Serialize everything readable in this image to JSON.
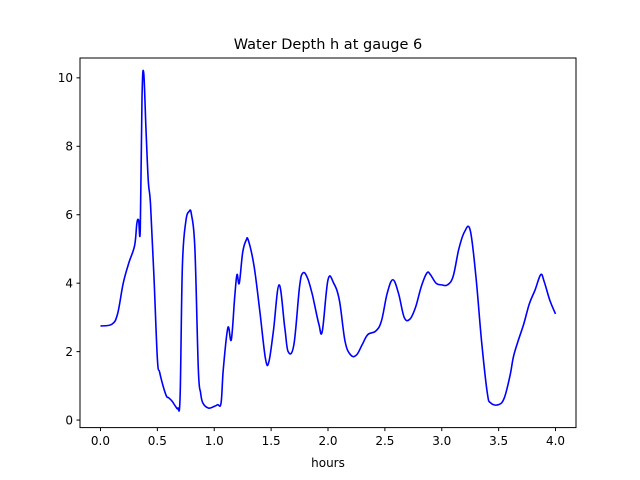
{
  "chart_data": {
    "type": "line",
    "title": "Water Depth h at gauge 6",
    "xlabel": "hours",
    "ylabel": "",
    "xlim": [
      -0.18,
      4.18
    ],
    "ylim": [
      -0.22,
      10.58
    ],
    "xticks": [
      0.0,
      0.5,
      1.0,
      1.5,
      2.0,
      2.5,
      3.0,
      3.5,
      4.0
    ],
    "xtick_labels": [
      "0.0",
      "0.5",
      "1.0",
      "1.5",
      "2.0",
      "2.5",
      "3.0",
      "3.5",
      "4.0"
    ],
    "yticks": [
      0,
      2,
      4,
      6,
      8,
      10
    ],
    "ytick_labels": [
      "0",
      "2",
      "4",
      "6",
      "8",
      "10"
    ],
    "grid": false,
    "colors": {
      "line": "#0000ff",
      "axes": "#000000",
      "background": "#ffffff"
    },
    "series": [
      {
        "x": [
          0.0,
          0.1,
          0.15,
          0.2,
          0.25,
          0.3,
          0.32,
          0.335,
          0.35,
          0.365,
          0.38,
          0.4,
          0.42,
          0.44,
          0.47,
          0.5,
          0.52,
          0.55,
          0.58,
          0.6,
          0.63,
          0.66,
          0.68,
          0.7,
          0.72,
          0.75,
          0.78,
          0.8,
          0.83,
          0.86,
          0.88,
          0.9,
          0.95,
          1.0,
          1.03,
          1.06,
          1.08,
          1.12,
          1.15,
          1.18,
          1.2,
          1.22,
          1.25,
          1.28,
          1.3,
          1.35,
          1.4,
          1.45,
          1.48,
          1.52,
          1.57,
          1.62,
          1.65,
          1.7,
          1.75,
          1.78,
          1.82,
          1.86,
          1.88,
          1.92,
          1.95,
          2.0,
          2.05,
          2.1,
          2.15,
          2.2,
          2.25,
          2.3,
          2.35,
          2.42,
          2.47,
          2.52,
          2.57,
          2.62,
          2.67,
          2.72,
          2.77,
          2.82,
          2.87,
          2.9,
          2.95,
          3.0,
          3.05,
          3.1,
          3.15,
          3.2,
          3.25,
          3.3,
          3.35,
          3.4,
          3.43,
          3.5,
          3.55,
          3.6,
          3.63,
          3.67,
          3.72,
          3.77,
          3.82,
          3.87,
          3.9,
          3.95,
          4.0
        ],
        "y": [
          2.75,
          2.8,
          3.1,
          4.0,
          4.6,
          5.1,
          5.75,
          5.85,
          5.6,
          9.4,
          10.15,
          8.5,
          7.0,
          6.3,
          4.2,
          1.8,
          1.4,
          1.0,
          0.7,
          0.65,
          0.55,
          0.4,
          0.35,
          0.7,
          4.5,
          5.8,
          6.1,
          6.0,
          5.0,
          1.5,
          0.8,
          0.5,
          0.35,
          0.4,
          0.45,
          0.5,
          1.5,
          2.7,
          2.35,
          3.6,
          4.25,
          4.0,
          4.9,
          5.25,
          5.25,
          4.5,
          3.2,
          1.8,
          1.7,
          2.6,
          3.95,
          2.7,
          2.0,
          2.2,
          3.9,
          4.3,
          4.15,
          3.7,
          3.4,
          2.8,
          2.6,
          4.1,
          4.0,
          3.5,
          2.3,
          1.9,
          1.9,
          2.2,
          2.5,
          2.6,
          2.9,
          3.7,
          4.1,
          3.7,
          3.0,
          2.95,
          3.3,
          3.9,
          4.3,
          4.25,
          4.0,
          3.95,
          3.95,
          4.2,
          5.0,
          5.5,
          5.55,
          4.2,
          2.3,
          0.8,
          0.5,
          0.45,
          0.65,
          1.3,
          1.85,
          2.3,
          2.8,
          3.4,
          3.8,
          4.25,
          4.05,
          3.5,
          3.1
        ]
      }
    ]
  }
}
